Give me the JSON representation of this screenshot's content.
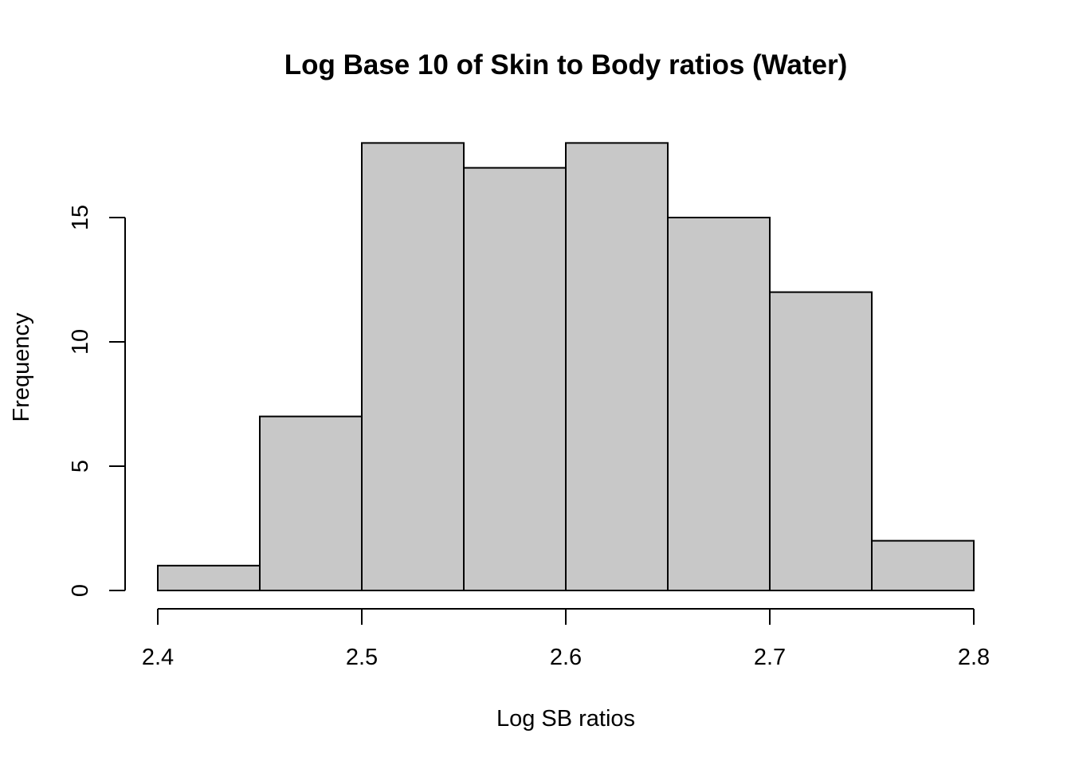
{
  "chart_data": {
    "type": "bar",
    "title": "Log Base 10 of Skin to Body ratios (Water)",
    "xlabel": "Log SB ratios",
    "ylabel": "Frequency",
    "bins": [
      {
        "start": 2.4,
        "end": 2.45,
        "count": 1
      },
      {
        "start": 2.45,
        "end": 2.5,
        "count": 7
      },
      {
        "start": 2.5,
        "end": 2.55,
        "count": 18
      },
      {
        "start": 2.55,
        "end": 2.6,
        "count": 17
      },
      {
        "start": 2.6,
        "end": 2.65,
        "count": 18
      },
      {
        "start": 2.65,
        "end": 2.7,
        "count": 15
      },
      {
        "start": 2.7,
        "end": 2.75,
        "count": 12
      },
      {
        "start": 2.75,
        "end": 2.8,
        "count": 2
      }
    ],
    "x_ticks": [
      2.4,
      2.5,
      2.6,
      2.7,
      2.8
    ],
    "x_tick_labels": [
      "2.4",
      "2.5",
      "2.6",
      "2.7",
      "2.8"
    ],
    "y_ticks": [
      0,
      5,
      10,
      15
    ],
    "y_tick_labels": [
      "0",
      "5",
      "10",
      "15"
    ],
    "xlim": [
      2.4,
      2.8
    ],
    "ylim": [
      0,
      18
    ],
    "grid": false,
    "bar_color": "#c8c8c8",
    "edge_color": "#000000"
  }
}
